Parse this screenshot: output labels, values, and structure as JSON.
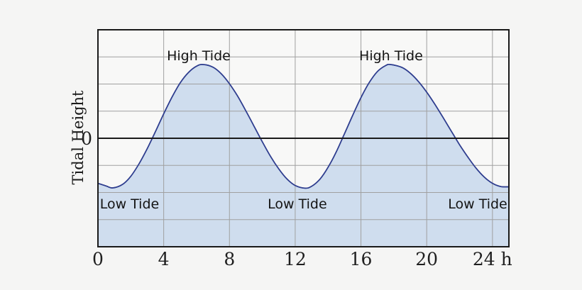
{
  "figure": {
    "background": "#f5f5f4",
    "plot_background": "#f8f8f7",
    "grid_color": "#a0a0a0",
    "frame_color": "#1a1a1a",
    "curve_color": "#2f3e8f",
    "fill_color": "#cfddee"
  },
  "chart_data": {
    "type": "area",
    "title": "",
    "xlabel": "",
    "ylabel": "Tidal Height",
    "y_zero_label": "0",
    "grid": true,
    "xlim": [
      0,
      25
    ],
    "ylim": [
      -4,
      4
    ],
    "x_ticks": [
      {
        "t": 0,
        "label": "0"
      },
      {
        "t": 4,
        "label": "4"
      },
      {
        "t": 8,
        "label": "8"
      },
      {
        "t": 12,
        "label": "12"
      },
      {
        "t": 16,
        "label": "16"
      },
      {
        "t": 20,
        "label": "20"
      },
      {
        "t": 24,
        "label": "24 h"
      }
    ],
    "high_tide_hours": [
      6.4,
      17.8
    ],
    "low_tide_hours": [
      0.9,
      12.6,
      24.8
    ],
    "high_tide_level": 2.72,
    "low_tide_level": -1.84,
    "annotations": [
      {
        "kind": "high",
        "text": "High Tide",
        "t": 6.13,
        "v": 2.88
      },
      {
        "kind": "high",
        "text": "High Tide",
        "t": 17.83,
        "v": 2.88
      },
      {
        "kind": "low",
        "text": "Low Tide",
        "t": 1.92,
        "v": -2.59
      },
      {
        "kind": "low",
        "text": "Low Tide",
        "t": 12.13,
        "v": -2.59
      },
      {
        "kind": "low",
        "text": "Low Tide",
        "t": 23.1,
        "v": -2.59
      }
    ],
    "points": [
      [
        0,
        -1.66
      ],
      [
        0.5,
        -1.76
      ],
      [
        0.9,
        -1.83
      ],
      [
        1.5,
        -1.7
      ],
      [
        2,
        -1.4
      ],
      [
        2.5,
        -0.94
      ],
      [
        3,
        -0.38
      ],
      [
        3.5,
        0.25
      ],
      [
        4,
        0.9
      ],
      [
        4.5,
        1.51
      ],
      [
        5,
        2.04
      ],
      [
        5.5,
        2.42
      ],
      [
        6,
        2.66
      ],
      [
        6.4,
        2.72
      ],
      [
        7,
        2.62
      ],
      [
        7.5,
        2.38
      ],
      [
        8,
        2.01
      ],
      [
        8.5,
        1.55
      ],
      [
        9,
        1.01
      ],
      [
        9.5,
        0.44
      ],
      [
        10,
        -0.13
      ],
      [
        10.5,
        -0.67
      ],
      [
        11,
        -1.13
      ],
      [
        11.5,
        -1.5
      ],
      [
        12,
        -1.74
      ],
      [
        12.6,
        -1.84
      ],
      [
        13,
        -1.77
      ],
      [
        13.5,
        -1.51
      ],
      [
        14,
        -1.07
      ],
      [
        14.5,
        -0.5
      ],
      [
        15,
        0.17
      ],
      [
        15.5,
        0.85
      ],
      [
        16,
        1.5
      ],
      [
        16.5,
        2.05
      ],
      [
        17,
        2.46
      ],
      [
        17.5,
        2.68
      ],
      [
        17.8,
        2.72
      ],
      [
        18.5,
        2.61
      ],
      [
        19,
        2.4
      ],
      [
        19.5,
        2.09
      ],
      [
        20,
        1.7
      ],
      [
        20.5,
        1.25
      ],
      [
        21,
        0.76
      ],
      [
        21.5,
        0.26
      ],
      [
        22,
        -0.24
      ],
      [
        22.5,
        -0.69
      ],
      [
        23,
        -1.1
      ],
      [
        23.5,
        -1.43
      ],
      [
        24,
        -1.66
      ],
      [
        24.5,
        -1.78
      ],
      [
        25,
        -1.79
      ]
    ]
  }
}
